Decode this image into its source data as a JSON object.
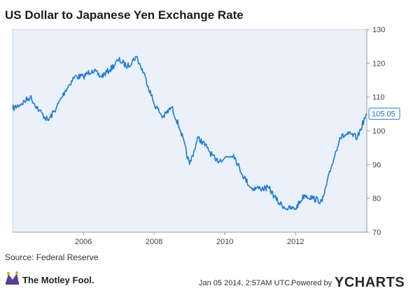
{
  "chart_data": {
    "type": "line",
    "title": "US Dollar to Japanese Yen Exchange Rate",
    "xlabel": "",
    "ylabel": "",
    "x_ticks": [
      "2006",
      "2008",
      "2010",
      "2012"
    ],
    "y_ticks": [
      "130",
      "120",
      "110",
      "100",
      "90",
      "80",
      "70"
    ],
    "ylim": [
      70,
      130
    ],
    "xlim": [
      "2004-01-01",
      "2014-01-05"
    ],
    "grid": false,
    "last_value": "105.05",
    "series": [
      {
        "color": "#1f7bd1",
        "x": [
          "2004-01",
          "2004-04",
          "2004-07",
          "2004-10",
          "2005-01",
          "2005-04",
          "2005-07",
          "2005-10",
          "2006-01",
          "2006-04",
          "2006-07",
          "2006-10",
          "2007-01",
          "2007-04",
          "2007-07",
          "2007-10",
          "2008-01",
          "2008-04",
          "2008-07",
          "2008-10",
          "2009-01",
          "2009-04",
          "2009-07",
          "2009-10",
          "2010-01",
          "2010-04",
          "2010-07",
          "2010-10",
          "2011-01",
          "2011-04",
          "2011-07",
          "2011-10",
          "2012-01",
          "2012-04",
          "2012-07",
          "2012-10",
          "2013-01",
          "2013-04",
          "2013-07",
          "2013-10",
          "2014-01"
        ],
        "y": [
          106.5,
          108,
          110,
          106,
          103,
          107,
          112,
          116,
          116,
          118,
          116,
          118,
          121,
          119,
          122,
          116,
          108,
          104,
          107,
          100,
          90,
          98,
          95,
          91,
          92,
          93,
          87,
          83,
          83,
          83,
          79,
          77,
          77,
          81,
          80,
          79,
          89,
          98,
          99,
          98,
          105.05
        ]
      }
    ]
  },
  "source": "Source: Federal Reserve",
  "footer": {
    "logo": "The Motley Fool.",
    "timestamp": "Jan 05 2014, 2:57AM UTC.",
    "powered_by": "Powered by",
    "ycharts": "YCHARTS"
  },
  "colors": {
    "plot_bg": "#eaf1fb",
    "line": "#1f7bd1",
    "axis": "#999999"
  }
}
